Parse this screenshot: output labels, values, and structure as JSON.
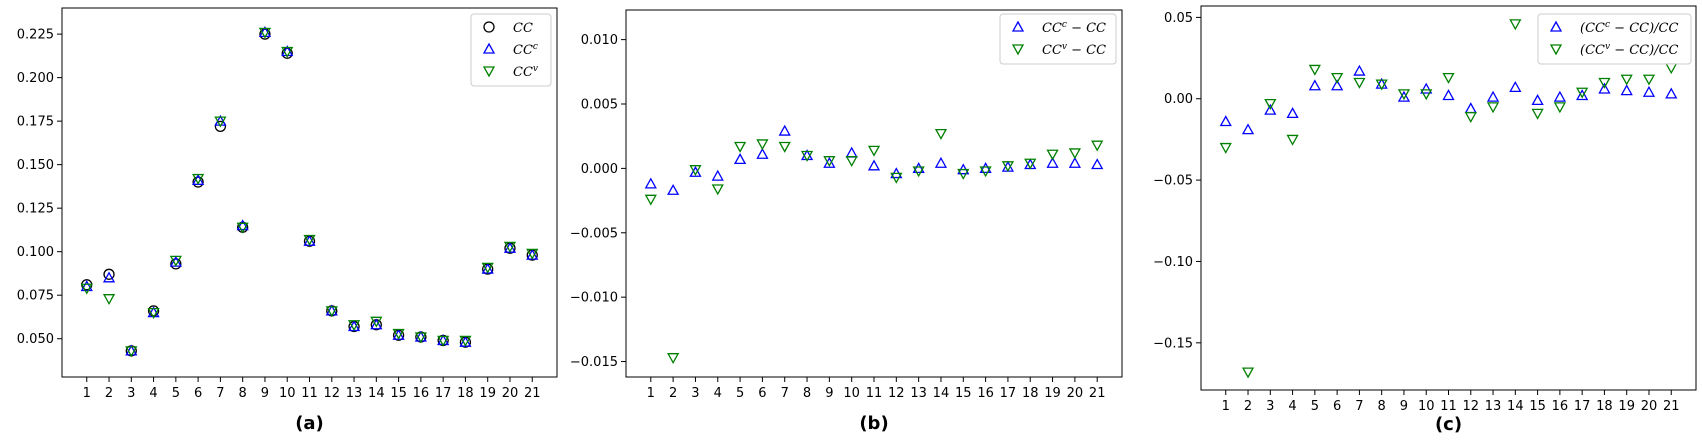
{
  "chart_data": [
    {
      "type": "scatter",
      "caption": "(a)",
      "categories": [
        1,
        2,
        3,
        4,
        5,
        6,
        7,
        8,
        9,
        10,
        11,
        12,
        13,
        14,
        15,
        16,
        17,
        18,
        19,
        20,
        21
      ],
      "ylim": [
        0.028,
        0.24
      ],
      "yticks": [
        "0.050",
        "0.075",
        "0.100",
        "0.125",
        "0.150",
        "0.175",
        "0.200",
        "0.225"
      ],
      "ytick_values": [
        0.05,
        0.075,
        0.1,
        0.125,
        0.15,
        0.175,
        0.2,
        0.225
      ],
      "legend_position": "top-right",
      "series": [
        {
          "name": "CC",
          "base": "CC",
          "sup": "",
          "marker": "circle",
          "color": "#000000",
          "values": [
            0.081,
            0.087,
            0.043,
            0.066,
            0.093,
            0.14,
            0.172,
            0.114,
            0.225,
            0.214,
            0.106,
            0.066,
            0.057,
            0.058,
            0.052,
            0.051,
            0.049,
            0.048,
            0.09,
            0.102,
            0.098
          ]
        },
        {
          "name": "CCc",
          "base": "CC",
          "sup": "c",
          "marker": "triangle-up",
          "color": "#0000ff",
          "values": [
            0.08,
            0.085,
            0.043,
            0.065,
            0.094,
            0.141,
            0.175,
            0.115,
            0.226,
            0.215,
            0.106,
            0.066,
            0.057,
            0.058,
            0.052,
            0.051,
            0.049,
            0.048,
            0.09,
            0.102,
            0.098
          ]
        },
        {
          "name": "CCv",
          "base": "CC",
          "sup": "v",
          "marker": "triangle-down",
          "color": "#008000",
          "values": [
            0.079,
            0.073,
            0.043,
            0.065,
            0.095,
            0.142,
            0.175,
            0.114,
            0.226,
            0.215,
            0.107,
            0.066,
            0.058,
            0.06,
            0.053,
            0.051,
            0.049,
            0.049,
            0.091,
            0.103,
            0.099
          ]
        }
      ]
    },
    {
      "type": "scatter",
      "caption": "(b)",
      "categories": [
        1,
        2,
        3,
        4,
        5,
        6,
        7,
        8,
        9,
        10,
        11,
        12,
        13,
        14,
        15,
        16,
        17,
        18,
        19,
        20,
        21
      ],
      "ylim": [
        -0.0162,
        0.0123
      ],
      "yticks": [
        "0.010",
        "0.005",
        "0.000",
        "−0.005",
        "−0.010",
        "−0.015"
      ],
      "ytick_values": [
        0.01,
        0.005,
        0.0,
        -0.005,
        -0.01,
        -0.015
      ],
      "legend_position": "top-right",
      "series": [
        {
          "name": "CCc - CC",
          "base": "CC",
          "sup": "c",
          "tail": " − CC",
          "marker": "triangle-up",
          "color": "#0000ff",
          "values": [
            -0.0012,
            -0.0017,
            -0.0003,
            -0.0006,
            0.0007,
            0.0011,
            0.0029,
            0.001,
            0.0004,
            0.0012,
            0.0002,
            -0.0004,
            0.0,
            0.0004,
            -0.0001,
            0.0,
            0.0001,
            0.0003,
            0.0004,
            0.0004,
            0.0003
          ]
        },
        {
          "name": "CCv - CC",
          "base": "CC",
          "sup": "v",
          "tail": " − CC",
          "marker": "triangle-down",
          "color": "#008000",
          "values": [
            -0.0024,
            -0.0147,
            -0.0001,
            -0.0016,
            0.0017,
            0.0019,
            0.0017,
            0.001,
            0.0006,
            0.0006,
            0.0014,
            -0.0007,
            -0.0002,
            0.0027,
            -0.0004,
            -0.0002,
            0.0002,
            0.0004,
            0.0011,
            0.0012,
            0.0018
          ]
        }
      ]
    },
    {
      "type": "scatter",
      "caption": "(c)",
      "categories": [
        1,
        2,
        3,
        4,
        5,
        6,
        7,
        8,
        9,
        10,
        11,
        12,
        13,
        14,
        15,
        16,
        17,
        18,
        19,
        20,
        21
      ],
      "ylim": [
        -0.179,
        0.057
      ],
      "yticks": [
        "0.05",
        "0.00",
        "−0.05",
        "−0.10",
        "−0.15"
      ],
      "ytick_values": [
        0.05,
        0.0,
        -0.05,
        -0.1,
        -0.15
      ],
      "legend_position": "top-right",
      "series": [
        {
          "name": "(CCc - CC)/CC",
          "pre": "(",
          "base": "CC",
          "sup": "c",
          "tail": " − CC)/CC",
          "marker": "triangle-up",
          "color": "#0000ff",
          "values": [
            -0.014,
            -0.019,
            -0.007,
            -0.009,
            0.008,
            0.008,
            0.017,
            0.009,
            0.001,
            0.006,
            0.002,
            -0.006,
            0.001,
            0.007,
            -0.001,
            0.001,
            0.002,
            0.006,
            0.005,
            0.004,
            0.003
          ]
        },
        {
          "name": "(CCv - CC)/CC",
          "pre": "(",
          "base": "CC",
          "sup": "v",
          "tail": " − CC)/CC",
          "marker": "triangle-down",
          "color": "#008000",
          "values": [
            -0.03,
            -0.168,
            -0.003,
            -0.025,
            0.018,
            0.013,
            0.01,
            0.009,
            0.003,
            0.003,
            0.013,
            -0.011,
            -0.005,
            0.046,
            -0.009,
            -0.005,
            0.004,
            0.01,
            0.012,
            0.012,
            0.019
          ]
        }
      ]
    }
  ]
}
